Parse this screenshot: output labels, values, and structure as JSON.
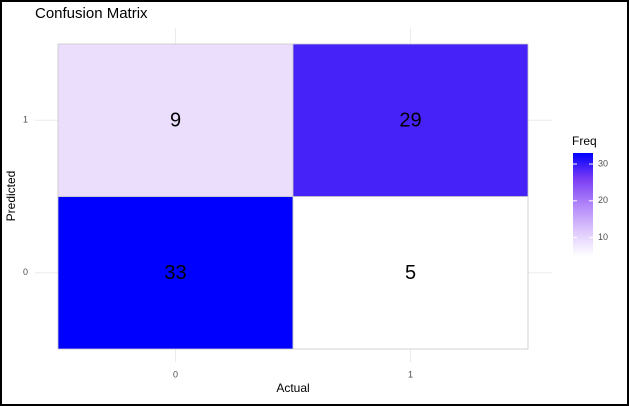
{
  "chart_data": {
    "type": "heatmap",
    "title": "Confusion Matrix",
    "x_label": "Actual",
    "y_label": "Predicted",
    "x_categories": [
      "0",
      "1"
    ],
    "y_categories": [
      "0",
      "1"
    ],
    "values": [
      [
        33,
        5
      ],
      [
        9,
        29
      ]
    ],
    "legend_title": "Freq",
    "clim": [
      5,
      33
    ],
    "cticks": [
      10,
      20,
      30
    ],
    "colors": [
      "#ffffff",
      "#dcc6fc",
      "#b085f9",
      "#7a3cf4",
      "#0000ff"
    ],
    "grid": true
  }
}
